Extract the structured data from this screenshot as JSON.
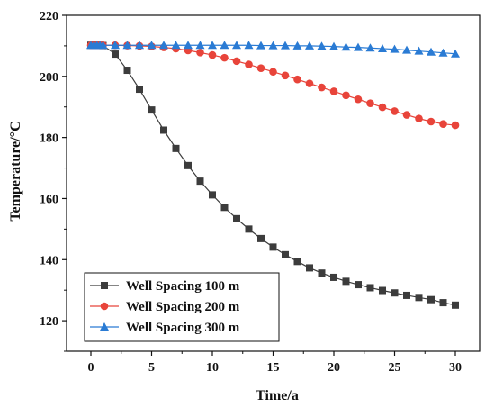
{
  "chart_data": {
    "type": "line",
    "title": "",
    "xlabel": "Time/a",
    "ylabel": "Temperature/°C",
    "xlim": [
      -2,
      32
    ],
    "ylim": [
      110,
      220
    ],
    "xticks": [
      0,
      5,
      10,
      15,
      20,
      25,
      30
    ],
    "yticks": [
      120,
      140,
      160,
      180,
      200,
      220
    ],
    "legend_position": "bottom-left",
    "grid": false,
    "series": [
      {
        "name": "Well Spacing 100 m",
        "color": "#3c3c3c",
        "marker": "square",
        "x": [
          0,
          0.25,
          0.5,
          0.75,
          1,
          2,
          3,
          4,
          5,
          6,
          7,
          8,
          9,
          10,
          11,
          12,
          13,
          14,
          15,
          16,
          17,
          18,
          19,
          20,
          21,
          22,
          23,
          24,
          25,
          26,
          27,
          28,
          29,
          30
        ],
        "y": [
          210.2,
          210.2,
          210.2,
          210.2,
          210.1,
          207.3,
          202.0,
          195.8,
          189.0,
          182.4,
          176.4,
          170.8,
          165.7,
          161.2,
          157.1,
          153.4,
          150.0,
          146.9,
          144.1,
          141.6,
          139.4,
          137.3,
          135.6,
          134.2,
          132.9,
          131.8,
          130.8,
          129.9,
          129.1,
          128.3,
          127.6,
          126.9,
          125.9,
          125.1
        ]
      },
      {
        "name": "Well Spacing 200 m",
        "color": "#e8443a",
        "marker": "circle",
        "x": [
          0,
          0.25,
          0.5,
          0.75,
          1,
          2,
          3,
          4,
          5,
          6,
          7,
          8,
          9,
          10,
          11,
          12,
          13,
          14,
          15,
          16,
          17,
          18,
          19,
          20,
          21,
          22,
          23,
          24,
          25,
          26,
          27,
          28,
          29,
          30
        ],
        "y": [
          210.2,
          210.2,
          210.2,
          210.2,
          210.2,
          210.2,
          210.1,
          210.0,
          209.8,
          209.5,
          209.1,
          208.5,
          207.8,
          207.0,
          206.1,
          205.0,
          203.9,
          202.7,
          201.5,
          200.3,
          199.0,
          197.7,
          196.4,
          195.1,
          193.8,
          192.5,
          191.2,
          189.9,
          188.6,
          187.4,
          186.2,
          185.2,
          184.4,
          184.0
        ]
      },
      {
        "name": "Well Spacing 300 m",
        "color": "#2a7bd4",
        "marker": "triangle",
        "x": [
          0,
          0.25,
          0.5,
          0.75,
          1,
          2,
          3,
          4,
          5,
          6,
          7,
          8,
          9,
          10,
          11,
          12,
          13,
          14,
          15,
          16,
          17,
          18,
          19,
          20,
          21,
          22,
          23,
          24,
          25,
          26,
          27,
          28,
          29,
          30
        ],
        "y": [
          210.2,
          210.2,
          210.2,
          210.2,
          210.2,
          210.2,
          210.2,
          210.2,
          210.2,
          210.2,
          210.2,
          210.2,
          210.2,
          210.2,
          210.2,
          210.2,
          210.2,
          210.1,
          210.1,
          210.1,
          210.0,
          210.0,
          209.9,
          209.8,
          209.6,
          209.5,
          209.3,
          209.1,
          208.9,
          208.6,
          208.3,
          208.0,
          207.7,
          207.4
        ]
      }
    ]
  }
}
